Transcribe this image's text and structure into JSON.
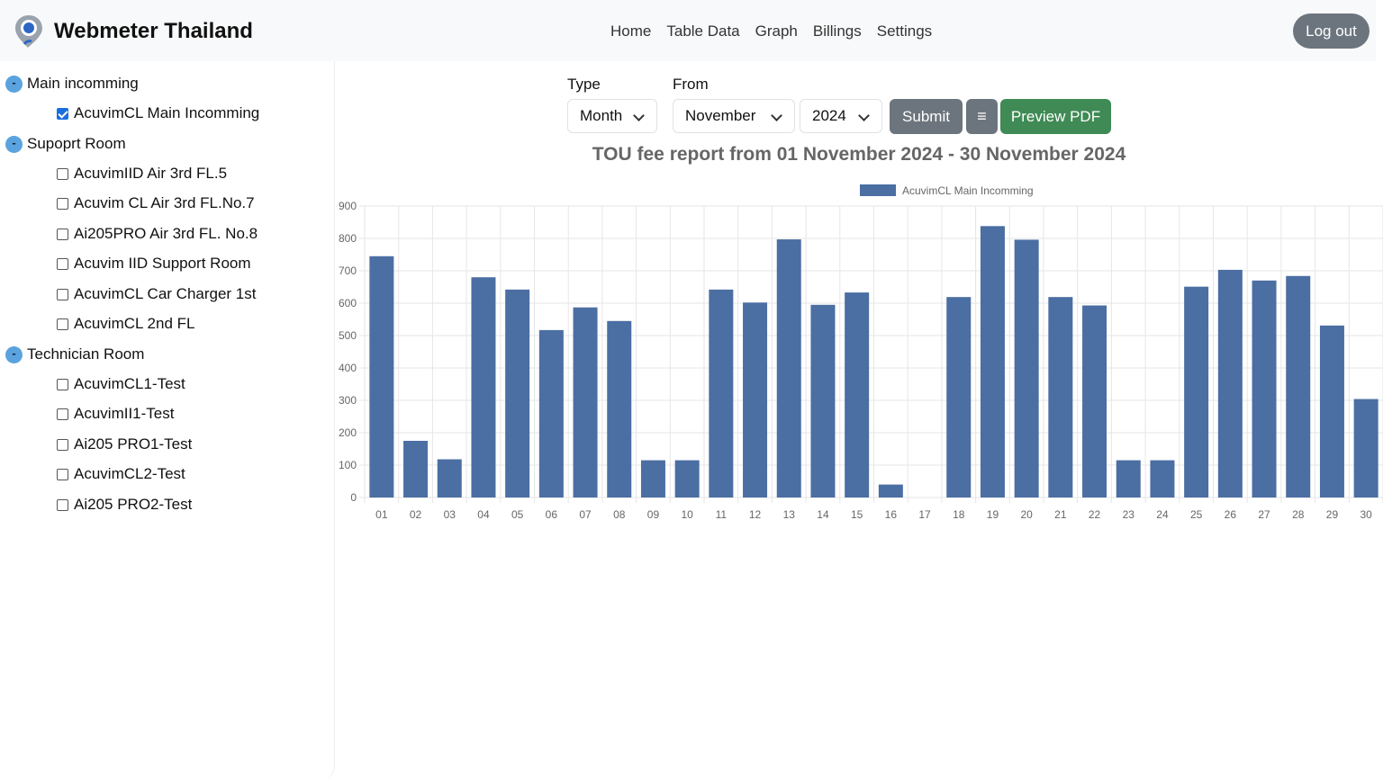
{
  "app": {
    "brand": "Webmeter Thailand",
    "logo_icon": "map-pin-logo-icon"
  },
  "nav": {
    "links": [
      "Home",
      "Table Data",
      "Graph",
      "Billings",
      "Settings"
    ],
    "logout": "Log out"
  },
  "sidebar": {
    "toggle_symbol": "-",
    "groups": [
      {
        "label": "Main incomming",
        "items": [
          {
            "label": "AcuvimCL Main Incomming",
            "checked": true
          }
        ]
      },
      {
        "label": "Supoprt Room",
        "items": [
          {
            "label": "AcuvimIID Air 3rd FL.5",
            "checked": false
          },
          {
            "label": "Acuvim CL Air 3rd FL.No.7",
            "checked": false
          },
          {
            "label": "Ai205PRO Air 3rd FL. No.8",
            "checked": false
          },
          {
            "label": "Acuvim IID Support Room",
            "checked": false
          },
          {
            "label": "AcuvimCL Car Charger 1st",
            "checked": false
          },
          {
            "label": "AcuvimCL 2nd FL",
            "checked": false
          }
        ]
      },
      {
        "label": "Technician Room",
        "items": [
          {
            "label": "AcuvimCL1-Test",
            "checked": false
          },
          {
            "label": "AcuvimII1-Test",
            "checked": false
          },
          {
            "label": "Ai205 PRO1-Test",
            "checked": false
          },
          {
            "label": "AcuvimCL2-Test",
            "checked": false
          },
          {
            "label": "Ai205 PRO2-Test",
            "checked": false
          }
        ]
      }
    ]
  },
  "form": {
    "type_label": "Type",
    "type_value": "Month",
    "from_label": "From",
    "month_value": "November",
    "year_value": "2024",
    "submit": "Submit",
    "menu_symbol": "≡",
    "preview_pdf": "Preview PDF"
  },
  "report_title": "TOU fee report from 01 November 2024 - 30 November 2024",
  "colors": {
    "bar": "#4b6ea3",
    "grid": "#e6e6e6",
    "submit": "#6c757d",
    "pdf": "#3f8a55",
    "toggle": "#5aa3df"
  },
  "chart_data": {
    "type": "bar",
    "categories": [
      "01",
      "02",
      "03",
      "04",
      "05",
      "06",
      "07",
      "08",
      "09",
      "10",
      "11",
      "12",
      "13",
      "14",
      "15",
      "16",
      "17",
      "18",
      "19",
      "20",
      "21",
      "22",
      "23",
      "24",
      "25",
      "26",
      "27",
      "28",
      "29",
      "30"
    ],
    "series": [
      {
        "name": "AcuvimCL Main Incomming",
        "values": [
          745,
          175,
          118,
          680,
          642,
          517,
          587,
          545,
          115,
          115,
          642,
          602,
          797,
          595,
          633,
          40,
          0,
          619,
          838,
          796,
          619,
          593,
          115,
          115,
          651,
          703,
          670,
          684,
          531,
          304
        ]
      }
    ],
    "ylim": [
      0,
      900
    ],
    "yticks": [
      0,
      100,
      200,
      300,
      400,
      500,
      600,
      700,
      800,
      900
    ],
    "grid": true,
    "legend": "top-center"
  }
}
